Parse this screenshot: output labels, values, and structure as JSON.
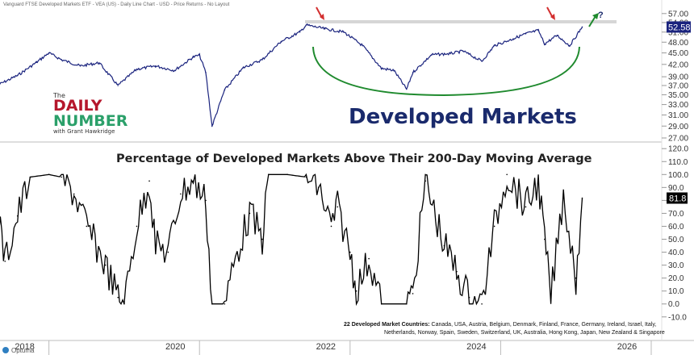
{
  "header_text": "Vanguard FTSE Developed Markets ETF - VEA (US) - Daily Line Chart - USD - Price Returns - No Layout",
  "logo": {
    "the": "The",
    "line1": "DAILY",
    "line2": "NUMBER",
    "byline": "with Grant Hawkridge"
  },
  "footer_brand": "Optuma",
  "colors": {
    "price_line": "#1a237e",
    "breadth_line": "#000000",
    "green_arc": "#1f8a2e",
    "red_arrow": "#d32f2f",
    "badge_bg": "#1a237e",
    "badge_bg_lower": "#000000",
    "gray_band": "#d6d6d6"
  },
  "chart_data": [
    {
      "type": "line",
      "title": "Developed Markets",
      "series": [],
      "x": [
        "2017-05",
        "2017-08",
        "2017-11",
        "2018-01",
        "2018-03",
        "2018-06",
        "2018-09",
        "2018-12",
        "2019-03",
        "2019-06",
        "2019-09",
        "2019-12",
        "2020-01",
        "2020-02",
        "2020-03",
        "2020-05",
        "2020-08",
        "2020-11",
        "2021-02",
        "2021-05",
        "2021-06",
        "2021-09",
        "2021-12",
        "2022-03",
        "2022-06",
        "2022-08",
        "2022-10",
        "2022-11",
        "2023-02",
        "2023-05",
        "2023-07",
        "2023-10",
        "2023-12",
        "2024-03",
        "2024-05",
        "2024-07",
        "2024-08",
        "2024-10",
        "2024-12",
        "2025-02"
      ],
      "values": [
        37.2,
        39.3,
        42.5,
        45.0,
        43.2,
        41.6,
        42.4,
        37.0,
        40.8,
        41.6,
        40.5,
        43.9,
        44.4,
        40.0,
        29.0,
        36.0,
        41.2,
        43.2,
        48.2,
        51.0,
        53.2,
        52.0,
        51.0,
        47.0,
        41.0,
        40.5,
        36.2,
        40.0,
        44.5,
        44.8,
        45.5,
        42.8,
        47.0,
        49.0,
        50.5,
        51.5,
        47.5,
        50.0,
        47.0,
        52.58
      ],
      "y_ticks": [
        "57.00",
        "54.00",
        "51.00",
        "48.00",
        "45.00",
        "42.00",
        "39.00",
        "37.00",
        "35.00",
        "33.00",
        "31.00",
        "29.00",
        "27.00"
      ],
      "scale": "log",
      "ylim": [
        27,
        57.5
      ],
      "last_value_label": "52.58",
      "annotation": "?"
    },
    {
      "type": "line",
      "title": "Percentage of Developed Markets Above Their 200-Day Moving Average",
      "series": [],
      "x": [
        "2017-05",
        "2017-06",
        "2017-08",
        "2017-10",
        "2018-01",
        "2018-03",
        "2018-05",
        "2018-07",
        "2018-10",
        "2018-12",
        "2019-01",
        "2019-03",
        "2019-05",
        "2019-06",
        "2019-08",
        "2019-10",
        "2019-12",
        "2020-02",
        "2020-03",
        "2020-05",
        "2020-07",
        "2020-09",
        "2020-11",
        "2020-12",
        "2021-03",
        "2021-06",
        "2021-08",
        "2021-10",
        "2021-11",
        "2022-01",
        "2022-02",
        "2022-04",
        "2022-06",
        "2022-10",
        "2022-11",
        "2023-01",
        "2023-04",
        "2023-06",
        "2023-08",
        "2023-10",
        "2023-12",
        "2024-02",
        "2024-05",
        "2024-07",
        "2024-08",
        "2024-09",
        "2024-11",
        "2025-01",
        "2025-02"
      ],
      "values": [
        65,
        33,
        68,
        98,
        100,
        98,
        85,
        60,
        30,
        5,
        0,
        60,
        95,
        45,
        40,
        85,
        95,
        80,
        0,
        0,
        40,
        70,
        50,
        100,
        100,
        98,
        90,
        60,
        75,
        40,
        10,
        35,
        0,
        0,
        8,
        95,
        45,
        25,
        5,
        0,
        60,
        100,
        75,
        95,
        50,
        5,
        85,
        20,
        81.8
      ],
      "y_ticks": [
        "120.0",
        "110.0",
        "100.0",
        "90.0",
        "80.0",
        "70.0",
        "60.0",
        "50.0",
        "40.0",
        "30.0",
        "20.0",
        "10.0",
        "0.0",
        "-10.0"
      ],
      "ylim": [
        -12,
        122
      ],
      "last_value_label": "81.8",
      "note_bold": "22 Developed Market Countries:",
      "note_line1": "Canada, USA, Austria, Belgium, Denmark, Finland, France, Germany, Ireland, Israel, Italy,",
      "note_line2": "Netherlands, Norway, Spain, Sweden, Switzerland, UK, Australia, Hong Kong, Japan, New Zealand & Singapore"
    }
  ],
  "x_axis_labels": [
    "2018",
    "2020",
    "2022",
    "2024",
    "2026"
  ]
}
